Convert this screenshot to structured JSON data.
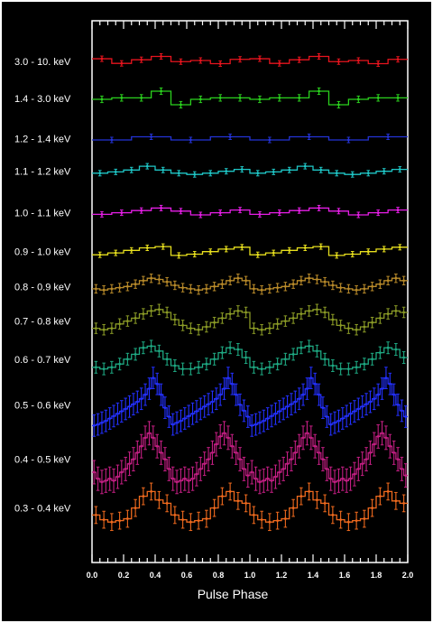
{
  "chart_data": {
    "type": "line",
    "style": "step-with-error-bars",
    "xlabel": "Pulse Phase",
    "xlim": [
      0,
      2.0
    ],
    "x_tick_labels": [
      "0.0",
      "0.2",
      "0.4",
      "0.6",
      "0.8",
      "1.0",
      "1.2",
      "1.4",
      "1.6",
      "1.8",
      "2.0"
    ],
    "grid": false,
    "background": "#000000",
    "axes_color": "#ffffff",
    "note": "Curves are vertically offset stacked profiles; values are relative profile heights (0 = bottom of each band, 1 = top) repeated over two cycles.",
    "series": [
      {
        "band": "3.0 - 10. keV",
        "color": "#e8141e",
        "bins": 8,
        "values": [
          0.62,
          0.3,
          0.55,
          0.78,
          0.42,
          0.5,
          0.28,
          0.58
        ]
      },
      {
        "band": "1.4 - 3.0 keV",
        "color": "#2bd11e",
        "bins": 8,
        "values": [
          0.4,
          0.48,
          0.48,
          0.85,
          0.1,
          0.4,
          0.48,
          0.48
        ]
      },
      {
        "band": "1.2 - 1.4 keV",
        "color": "#2433d6",
        "bins": 4,
        "values": [
          0.3,
          0.65,
          0.3,
          0.65
        ]
      },
      {
        "band": "1.1 - 1.2 keV",
        "color": "#1fc6c6",
        "bins": 10,
        "values": [
          0.3,
          0.4,
          0.55,
          0.85,
          0.55,
          0.3,
          0.2,
          0.3,
          0.45,
          0.6
        ]
      },
      {
        "band": "1.0 - 1.1 keV",
        "color": "#e61ee6",
        "bins": 8,
        "values": [
          0.3,
          0.45,
          0.65,
          0.88,
          0.6,
          0.25,
          0.45,
          0.7
        ]
      },
      {
        "band": "0.9 - 1.0 keV",
        "color": "#e8e01e",
        "bins": 10,
        "values": [
          0.2,
          0.35,
          0.55,
          0.75,
          0.85,
          0.15,
          0.25,
          0.45,
          0.65,
          0.8
        ]
      },
      {
        "band": "0.8 - 0.9 keV",
        "color": "#b88a2a",
        "bins": 20,
        "values": [
          0.35,
          0.3,
          0.35,
          0.4,
          0.45,
          0.55,
          0.7,
          0.8,
          0.75,
          0.65,
          0.5,
          0.4,
          0.35,
          0.3,
          0.35,
          0.45,
          0.55,
          0.7,
          0.8,
          0.7
        ]
      },
      {
        "band": "0.7 - 0.8 keV",
        "color": "#8a9a26",
        "bins": 20,
        "values": [
          0.2,
          0.15,
          0.2,
          0.35,
          0.45,
          0.55,
          0.7,
          0.8,
          0.85,
          0.75,
          0.5,
          0.3,
          0.2,
          0.15,
          0.25,
          0.4,
          0.55,
          0.7,
          0.8,
          0.75
        ]
      },
      {
        "band": "0.6 - 0.7 keV",
        "color": "#1ea882",
        "bins": 20,
        "values": [
          0.2,
          0.15,
          0.2,
          0.3,
          0.45,
          0.6,
          0.8,
          0.85,
          0.7,
          0.45,
          0.25,
          0.15,
          0.15,
          0.2,
          0.3,
          0.45,
          0.65,
          0.8,
          0.75,
          0.5
        ]
      },
      {
        "band": "0.5 - 0.6 keV",
        "color": "#2330ff",
        "bins": 40,
        "values": [
          0.1,
          0.12,
          0.15,
          0.18,
          0.22,
          0.26,
          0.3,
          0.34,
          0.38,
          0.42,
          0.46,
          0.5,
          0.55,
          0.62,
          0.72,
          0.9,
          0.8,
          0.62,
          0.4,
          0.25,
          0.12,
          0.15,
          0.18,
          0.22,
          0.26,
          0.3,
          0.34,
          0.38,
          0.42,
          0.46,
          0.5,
          0.55,
          0.62,
          0.72,
          0.9,
          0.8,
          0.62,
          0.45,
          0.35,
          0.25
        ]
      },
      {
        "band": "0.4 - 0.5 keV",
        "color": "#c21e82",
        "bins": 40,
        "values": [
          0.25,
          0.15,
          0.1,
          0.12,
          0.15,
          0.12,
          0.18,
          0.25,
          0.3,
          0.38,
          0.45,
          0.55,
          0.65,
          0.78,
          0.85,
          0.78,
          0.65,
          0.55,
          0.45,
          0.3,
          0.15,
          0.1,
          0.12,
          0.15,
          0.12,
          0.15,
          0.22,
          0.3,
          0.38,
          0.45,
          0.55,
          0.68,
          0.8,
          0.85,
          0.78,
          0.65,
          0.55,
          0.45,
          0.3,
          0.2
        ]
      },
      {
        "band": "0.3 - 0.4 keV",
        "color": "#f06a1e",
        "bins": 20,
        "values": [
          0.3,
          0.2,
          0.15,
          0.18,
          0.22,
          0.45,
          0.7,
          0.8,
          0.62,
          0.55,
          0.3,
          0.2,
          0.15,
          0.18,
          0.22,
          0.45,
          0.7,
          0.8,
          0.6,
          0.55
        ]
      }
    ]
  }
}
